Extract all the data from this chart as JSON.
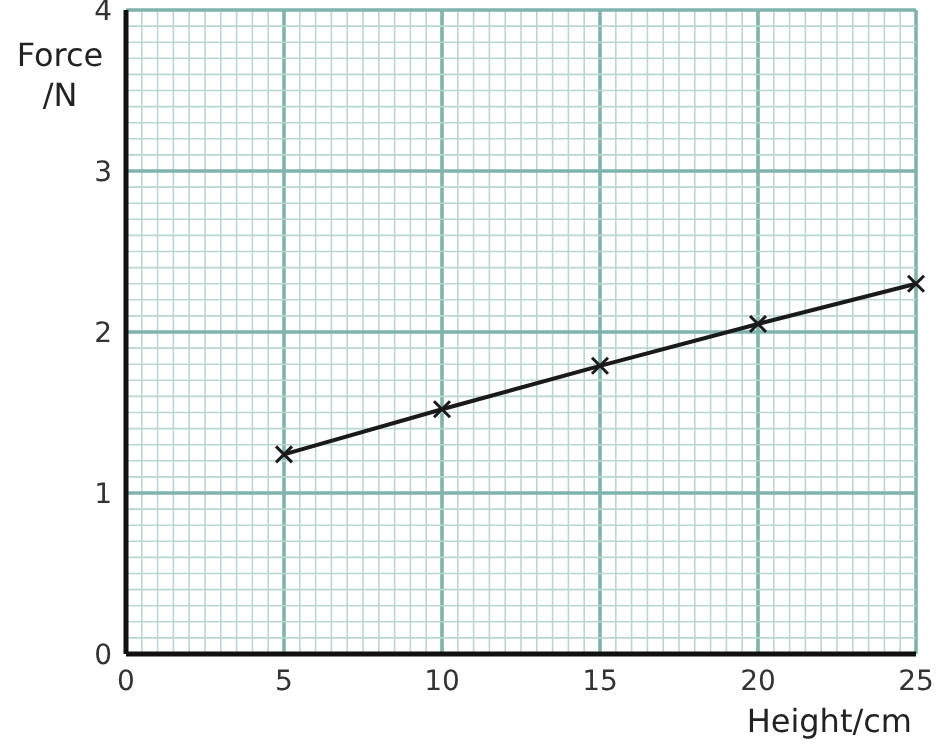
{
  "chart_data": {
    "type": "line",
    "xlabel": "Height/cm",
    "ylabel": "Force /N",
    "x": [
      5,
      10,
      15,
      20,
      25
    ],
    "series": [
      {
        "color": "#1a1a1a",
        "values": [
          1.24,
          1.52,
          1.79,
          2.05,
          2.3
        ]
      }
    ],
    "marker": "cross",
    "line_style": "solid",
    "grid": true,
    "xlim": [
      0,
      25
    ],
    "ylim": [
      0,
      4
    ],
    "xticks": [
      0,
      {
        "value": 0.5,
        "label": null
      },
      {
        "value": 1,
        "label": null
      },
      {
        "value": 1.5,
        "label": null
      },
      {
        "value": 2,
        "label": null
      },
      {
        "value": 2.5,
        "label": null
      },
      {
        "value": 3,
        "label": null
      },
      {
        "value": 3.5,
        "label": null
      },
      {
        "value": 4,
        "label": null
      },
      {
        "value": 4.5,
        "label": null
      },
      5,
      {
        "value": 5.5,
        "label": null
      },
      {
        "value": 6,
        "label": null
      },
      {
        "value": 6.5,
        "label": null
      },
      {
        "value": 7,
        "label": null
      },
      {
        "value": 7.5,
        "label": null
      },
      {
        "value": 8,
        "label": null
      },
      {
        "value": 8.5,
        "label": null
      },
      {
        "value": 9,
        "label": null
      },
      {
        "value": 9.5,
        "label": null
      },
      10,
      {
        "value": 10.5,
        "label": null
      },
      {
        "value": 11,
        "label": null
      },
      {
        "value": 11.5,
        "label": null
      },
      {
        "value": 12,
        "label": null
      },
      {
        "value": 12.5,
        "label": null
      },
      {
        "value": 13,
        "label": null
      },
      {
        "value": 13.5,
        "label": null
      },
      {
        "value": 14,
        "label": null
      },
      {
        "value": 14.5,
        "label": null
      },
      15,
      {
        "value": 15.5,
        "label": null
      },
      {
        "value": 16,
        "label": null
      },
      {
        "value": 16.5,
        "label": null
      },
      {
        "value": 17,
        "label": null
      },
      {
        "value": 17.5,
        "label": null
      },
      {
        "value": 18,
        "label": null
      },
      {
        "value": 18.5,
        "label": null
      },
      {
        "value": 19,
        "label": null
      },
      {
        "value": 19.5,
        "label": null
      },
      20,
      {
        "value": 20.5,
        "label": null
      },
      {
        "value": 21,
        "label": null
      },
      {
        "value": 21.5,
        "label": null
      },
      {
        "value": 22,
        "label": null
      },
      {
        "value": 22.5,
        "label": null
      },
      {
        "value": 23,
        "label": null
      },
      {
        "value": 23.5,
        "label": null
      },
      {
        "value": 24,
        "label": null
      },
      {
        "value": 24.5,
        "label": null
      },
      25
    ],
    "yticks": [
      0,
      {
        "value": 0.1,
        "label": null
      },
      {
        "value": 0.2,
        "label": null
      },
      {
        "value": 0.3,
        "label": null
      },
      {
        "value": 0.4,
        "label": null
      },
      {
        "value": 0.5,
        "label": null
      },
      {
        "value": 0.6,
        "label": null
      },
      {
        "value": 0.7,
        "label": null
      },
      {
        "value": 0.8,
        "label": null
      },
      {
        "value": 0.9,
        "label": null
      },
      1,
      {
        "value": 1.1,
        "label": null
      },
      {
        "value": 1.2,
        "label": null
      },
      {
        "value": 1.3,
        "label": null
      },
      {
        "value": 1.4,
        "label": null
      },
      {
        "value": 1.5,
        "label": null
      },
      {
        "value": 1.6,
        "label": null
      },
      {
        "value": 1.7,
        "label": null
      },
      {
        "value": 1.8,
        "label": null
      },
      {
        "value": 1.9,
        "label": null
      },
      2,
      {
        "value": 2.1,
        "label": null
      },
      {
        "value": 2.2,
        "label": null
      },
      {
        "value": 2.3,
        "label": null
      },
      {
        "value": 2.4,
        "label": null
      },
      {
        "value": 2.5,
        "label": null
      },
      {
        "value": 2.6,
        "label": null
      },
      {
        "value": 2.7,
        "label": null
      },
      {
        "value": 2.8,
        "label": null
      },
      {
        "value": 2.9,
        "label": null
      },
      3,
      {
        "value": 3.1,
        "label": null
      },
      {
        "value": 3.2,
        "label": null
      },
      {
        "value": 3.3,
        "label": null
      },
      {
        "value": 3.4,
        "label": null
      },
      {
        "value": 3.5,
        "label": null
      },
      {
        "value": 3.6,
        "label": null
      },
      {
        "value": 3.7,
        "label": null
      },
      {
        "value": 3.8,
        "label": null
      },
      {
        "value": 3.9,
        "label": null
      },
      4
    ]
  }
}
